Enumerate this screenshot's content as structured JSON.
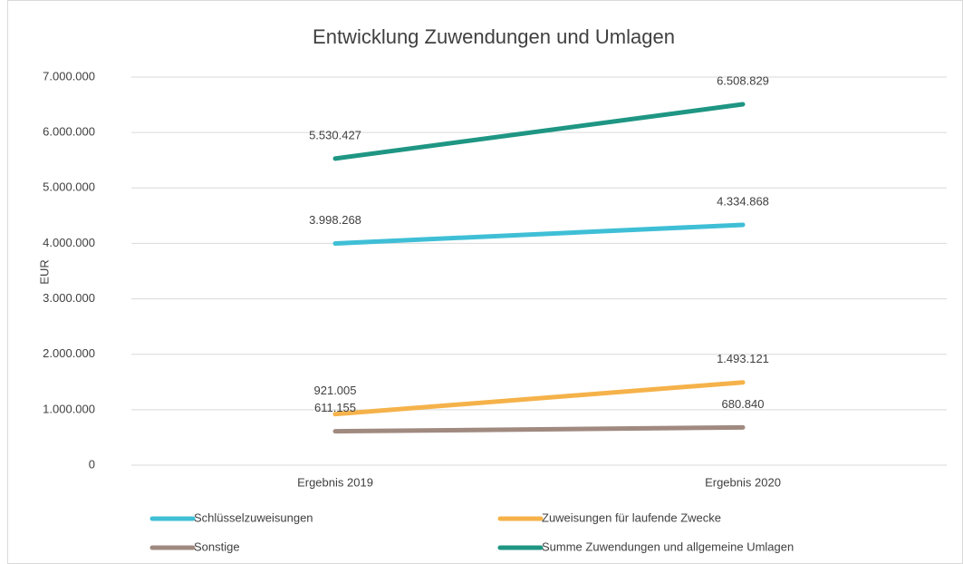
{
  "chart_data": {
    "type": "line",
    "title": "Entwicklung Zuwendungen und Umlagen",
    "y_label": "EUR",
    "categories": [
      "Ergebnis 2019",
      "Ergebnis 2020"
    ],
    "series": [
      {
        "name": "Schlüsselzuweisungen",
        "color": "#3fbfd6",
        "values": [
          3998268,
          4334868
        ],
        "value_labels": [
          "3.998.268",
          "4.334.868"
        ]
      },
      {
        "name": "Zuweisungen für laufende Zwecke",
        "color": "#f5b24a",
        "values": [
          921005,
          1493121
        ],
        "value_labels": [
          "921.005",
          "1.493.121"
        ]
      },
      {
        "name": "Sonstige",
        "color": "#a08a80",
        "values": [
          611155,
          680840
        ],
        "value_labels": [
          "611.155",
          "680.840"
        ]
      },
      {
        "name": "Summe Zuwendungen und allgemeine Umlagen",
        "color": "#1e9683",
        "values": [
          5530427,
          6508829
        ],
        "value_labels": [
          "5.530.427",
          "6.508.829"
        ]
      }
    ],
    "ylim": [
      0,
      7000000
    ],
    "yticks": [
      0,
      {
        "value": 1000000,
        "label": "1.000.000"
      },
      {
        "value": 2000000,
        "label": "2.000.000"
      },
      {
        "value": 3000000,
        "label": "3.000.000"
      },
      {
        "value": 4000000,
        "label": "4.000.000"
      },
      {
        "value": 5000000,
        "label": "5.000.000"
      },
      {
        "value": 6000000,
        "label": "6.000.000"
      },
      {
        "value": 7000000,
        "label": "7.000.000"
      }
    ],
    "grid": true,
    "legend": "bottom"
  }
}
